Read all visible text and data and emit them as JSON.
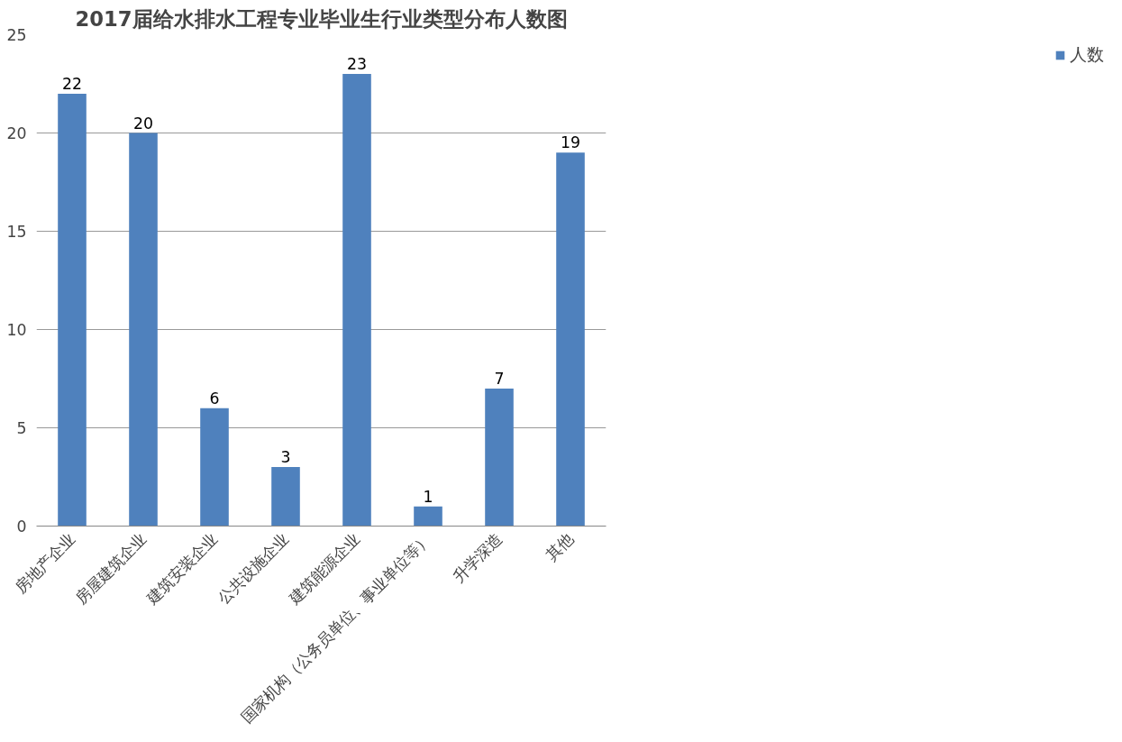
{
  "chart_data": {
    "type": "bar",
    "title": "2017届给水排水工程专业毕业生行业类型分布人数图",
    "categories": [
      "房地产企业",
      "房屋建筑企业",
      "建筑安装企业",
      "公共设施企业",
      "建筑能源企业",
      "国家机构（公务员单位、事业单位等）",
      "升学深造",
      "其他"
    ],
    "series": [
      {
        "name": "人数",
        "color": "#4f81bd",
        "values": [
          22,
          20,
          6,
          3,
          23,
          1,
          7,
          19
        ]
      }
    ],
    "ylim": [
      0,
      25
    ],
    "yticks": [
      0,
      5,
      10,
      15,
      20,
      25
    ],
    "grid": "y",
    "legend": "right",
    "data_labels": true
  }
}
